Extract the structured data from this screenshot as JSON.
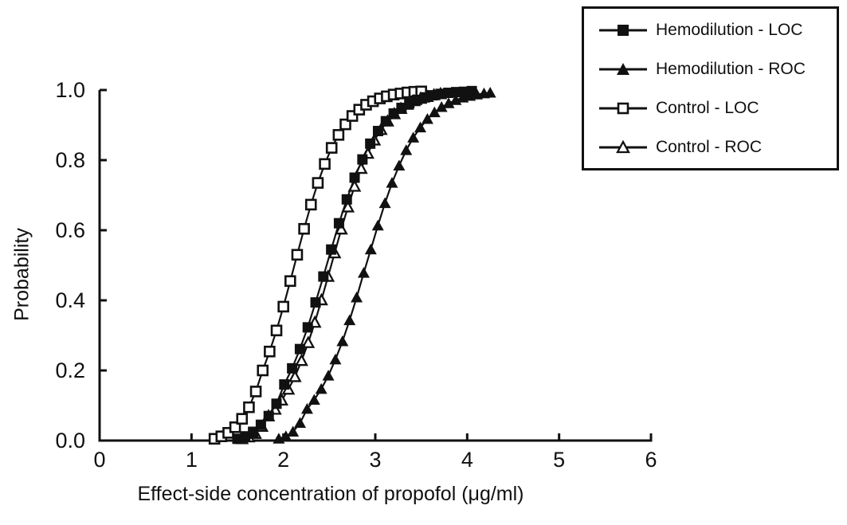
{
  "figure": {
    "background": "#ffffff",
    "ink": "#111111"
  },
  "chart_data": {
    "type": "line",
    "title": "",
    "xlabel": "Effect-side concentration of propofol (μg/ml)",
    "ylabel": "Probability",
    "xlim": [
      0,
      6
    ],
    "ylim": [
      0.0,
      1.0
    ],
    "xticks": [
      "0",
      "1",
      "2",
      "3",
      "4",
      "5",
      "6"
    ],
    "yticks": [
      "0.0",
      "0.2",
      "0.4",
      "0.6",
      "0.8",
      "1.0"
    ],
    "grid": false,
    "legend_position": "top-right",
    "series": [
      {
        "name": "Hemodilution - LOC",
        "marker": "filled-square",
        "color": "#111111",
        "points": [
          [
            1.5,
            0.005
          ],
          [
            1.585,
            0.012
          ],
          [
            1.67,
            0.025
          ],
          [
            1.755,
            0.045
          ],
          [
            1.84,
            0.07
          ],
          [
            1.925,
            0.105
          ],
          [
            2.01,
            0.16
          ],
          [
            2.095,
            0.206
          ],
          [
            2.18,
            0.261
          ],
          [
            2.265,
            0.323
          ],
          [
            2.35,
            0.394
          ],
          [
            2.435,
            0.468
          ],
          [
            2.52,
            0.545
          ],
          [
            2.605,
            0.62
          ],
          [
            2.69,
            0.688
          ],
          [
            2.775,
            0.75
          ],
          [
            2.86,
            0.802
          ],
          [
            2.945,
            0.847
          ],
          [
            3.03,
            0.883
          ],
          [
            3.115,
            0.911
          ],
          [
            3.2,
            0.933
          ],
          [
            3.285,
            0.949
          ],
          [
            3.37,
            0.962
          ],
          [
            3.455,
            0.972
          ],
          [
            3.54,
            0.979
          ],
          [
            3.625,
            0.985
          ],
          [
            3.71,
            0.989
          ],
          [
            3.795,
            0.992
          ],
          [
            3.88,
            0.994
          ],
          [
            3.965,
            0.995
          ],
          [
            4.05,
            0.997
          ]
        ]
      },
      {
        "name": "Hemodilution - ROC",
        "marker": "filled-triangle",
        "color": "#111111",
        "points": [
          [
            1.95,
            0.005
          ],
          [
            2.027,
            0.012
          ],
          [
            2.104,
            0.025
          ],
          [
            2.181,
            0.05
          ],
          [
            2.258,
            0.09
          ],
          [
            2.335,
            0.116
          ],
          [
            2.412,
            0.147
          ],
          [
            2.489,
            0.185
          ],
          [
            2.566,
            0.231
          ],
          [
            2.643,
            0.283
          ],
          [
            2.72,
            0.343
          ],
          [
            2.797,
            0.408
          ],
          [
            2.874,
            0.478
          ],
          [
            2.951,
            0.545
          ],
          [
            3.028,
            0.613
          ],
          [
            3.105,
            0.677
          ],
          [
            3.182,
            0.735
          ],
          [
            3.259,
            0.784
          ],
          [
            3.336,
            0.828
          ],
          [
            3.413,
            0.864
          ],
          [
            3.49,
            0.893
          ],
          [
            3.567,
            0.917
          ],
          [
            3.644,
            0.936
          ],
          [
            3.721,
            0.951
          ],
          [
            3.798,
            0.962
          ],
          [
            3.875,
            0.971
          ],
          [
            3.952,
            0.978
          ],
          [
            4.029,
            0.983
          ],
          [
            4.106,
            0.987
          ],
          [
            4.183,
            0.99
          ],
          [
            4.25,
            0.992
          ]
        ]
      },
      {
        "name": "Control - LOC",
        "marker": "open-square",
        "color": "#111111",
        "points": [
          [
            1.25,
            0.005
          ],
          [
            1.325,
            0.012
          ],
          [
            1.4,
            0.022
          ],
          [
            1.475,
            0.038
          ],
          [
            1.55,
            0.062
          ],
          [
            1.625,
            0.095
          ],
          [
            1.7,
            0.14
          ],
          [
            1.775,
            0.2
          ],
          [
            1.85,
            0.254
          ],
          [
            1.925,
            0.314
          ],
          [
            2.0,
            0.382
          ],
          [
            2.075,
            0.455
          ],
          [
            2.15,
            0.53
          ],
          [
            2.225,
            0.604
          ],
          [
            2.3,
            0.673
          ],
          [
            2.375,
            0.735
          ],
          [
            2.45,
            0.789
          ],
          [
            2.525,
            0.835
          ],
          [
            2.6,
            0.872
          ],
          [
            2.675,
            0.902
          ],
          [
            2.75,
            0.926
          ],
          [
            2.825,
            0.944
          ],
          [
            2.9,
            0.958
          ],
          [
            2.975,
            0.968
          ],
          [
            3.05,
            0.976
          ],
          [
            3.125,
            0.982
          ],
          [
            3.2,
            0.987
          ],
          [
            3.275,
            0.99
          ],
          [
            3.35,
            0.993
          ],
          [
            3.425,
            0.995
          ],
          [
            3.5,
            0.996
          ]
        ]
      },
      {
        "name": "Control - ROC",
        "marker": "open-triangle",
        "color": "#111111",
        "points": [
          [
            1.55,
            0.005
          ],
          [
            1.622,
            0.01
          ],
          [
            1.694,
            0.02
          ],
          [
            1.766,
            0.04
          ],
          [
            1.838,
            0.07
          ],
          [
            1.91,
            0.089
          ],
          [
            1.982,
            0.115
          ],
          [
            2.054,
            0.146
          ],
          [
            2.126,
            0.182
          ],
          [
            2.198,
            0.228
          ],
          [
            2.27,
            0.279
          ],
          [
            2.342,
            0.337
          ],
          [
            2.414,
            0.401
          ],
          [
            2.486,
            0.468
          ],
          [
            2.558,
            0.535
          ],
          [
            2.63,
            0.603
          ],
          [
            2.702,
            0.666
          ],
          [
            2.774,
            0.725
          ],
          [
            2.846,
            0.776
          ],
          [
            2.918,
            0.819
          ],
          [
            2.99,
            0.857
          ],
          [
            3.062,
            0.887
          ],
          [
            3.134,
            0.911
          ],
          [
            3.206,
            0.932
          ],
          [
            3.278,
            0.947
          ],
          [
            3.35,
            0.959
          ],
          [
            3.422,
            0.969
          ],
          [
            3.494,
            0.976
          ],
          [
            3.566,
            0.981
          ],
          [
            3.638,
            0.986
          ],
          [
            3.71,
            0.989
          ]
        ]
      }
    ]
  }
}
